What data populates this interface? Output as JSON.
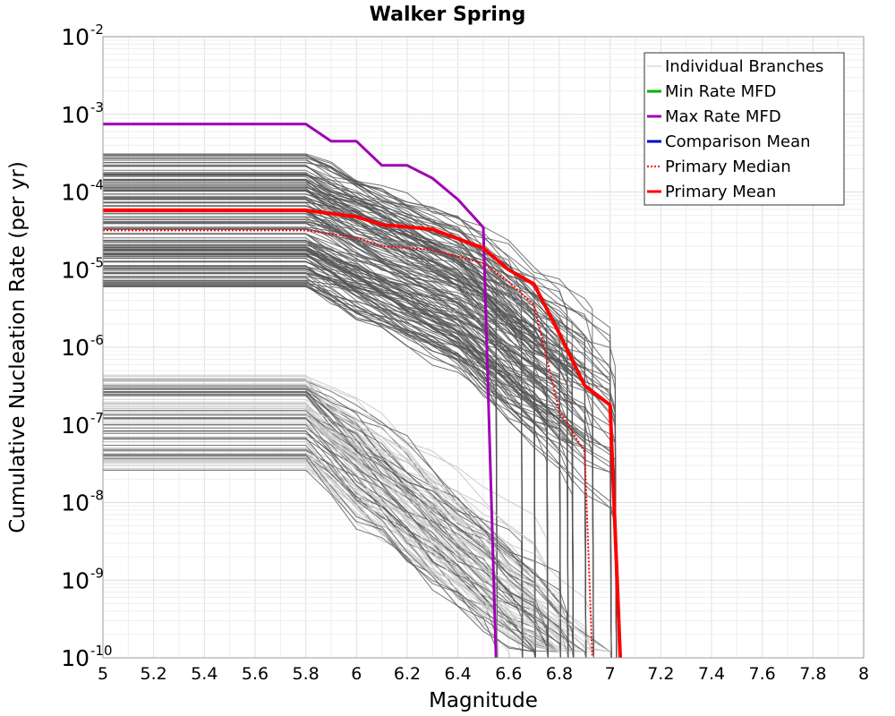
{
  "chart_data": {
    "type": "line",
    "title": "Walker Spring",
    "xlabel": "Magnitude",
    "ylabel": "Cumulative Nucleation Rate (per yr)",
    "xscale": "linear",
    "yscale": "log",
    "xlim": [
      5,
      8
    ],
    "ylim": [
      1e-10,
      0.01
    ],
    "grid": true,
    "legend_position": "top-right",
    "x_ticks": [
      "5",
      "5.2",
      "5.4",
      "5.6",
      "5.8",
      "6",
      "6.2",
      "6.4",
      "6.6",
      "6.8",
      "7",
      "7.2",
      "7.4",
      "7.6",
      "7.8",
      "8"
    ],
    "y_ticks": [
      {
        "base": "10",
        "exp": "-10",
        "value": 1e-10
      },
      {
        "base": "10",
        "exp": "-9",
        "value": 1e-09
      },
      {
        "base": "10",
        "exp": "-8",
        "value": 1e-08
      },
      {
        "base": "10",
        "exp": "-7",
        "value": 1e-07
      },
      {
        "base": "10",
        "exp": "-6",
        "value": 1e-06
      },
      {
        "base": "10",
        "exp": "-5",
        "value": 1e-05
      },
      {
        "base": "10",
        "exp": "-4",
        "value": 0.0001
      },
      {
        "base": "10",
        "exp": "-3",
        "value": 0.001
      },
      {
        "base": "10",
        "exp": "-2",
        "value": 0.01
      }
    ],
    "legend": [
      {
        "label": "Individual Branches",
        "color": "#c8c8c8",
        "style": "solid"
      },
      {
        "label": "Min Rate MFD",
        "color": "#00b000",
        "style": "solid"
      },
      {
        "label": "Max Rate MFD",
        "color": "#a000b4",
        "style": "solid"
      },
      {
        "label": "Comparison Mean",
        "color": "#0000cc",
        "style": "solid"
      },
      {
        "label": "Primary Median",
        "color": "#ff0000",
        "style": "dotted"
      },
      {
        "label": "Primary Mean",
        "color": "#ff0000",
        "style": "solid"
      }
    ],
    "series": [
      {
        "name": "Max Rate MFD",
        "color": "#a000b4",
        "width": 3,
        "style": "solid",
        "x": [
          5.0,
          5.8,
          5.9,
          6.0,
          6.1,
          6.2,
          6.3,
          6.4,
          6.5,
          6.55
        ],
        "y": [
          0.00075,
          0.00075,
          0.00045,
          0.00045,
          0.00022,
          0.00022,
          0.00015,
          8e-05,
          3.5e-05,
          1e-10
        ]
      },
      {
        "name": "Primary Mean",
        "color": "#ff0000",
        "width": 4,
        "style": "solid",
        "x": [
          5.0,
          5.8,
          6.0,
          6.1,
          6.3,
          6.5,
          6.6,
          6.7,
          6.8,
          6.9,
          7.0,
          7.04
        ],
        "y": [
          5.8e-05,
          5.8e-05,
          4.8e-05,
          3.8e-05,
          3.3e-05,
          1.9e-05,
          1e-05,
          6.5e-06,
          1.5e-06,
          3.2e-07,
          1.8e-07,
          1e-10
        ]
      },
      {
        "name": "Primary Median",
        "color": "#ff0000",
        "width": 2,
        "style": "dotted",
        "x": [
          5.0,
          5.8,
          6.0,
          6.1,
          6.3,
          6.5,
          6.6,
          6.7,
          6.8,
          6.9,
          6.93
        ],
        "y": [
          3.2e-05,
          3.2e-05,
          2.6e-05,
          2e-05,
          1.8e-05,
          1.2e-05,
          7e-06,
          3.5e-06,
          1.5e-07,
          4.5e-08,
          1e-10
        ]
      }
    ],
    "branches": {
      "name": "Individual Branches",
      "description_count": 260,
      "light_color": "#c8c8c8",
      "dark_color": "#555555"
    }
  }
}
